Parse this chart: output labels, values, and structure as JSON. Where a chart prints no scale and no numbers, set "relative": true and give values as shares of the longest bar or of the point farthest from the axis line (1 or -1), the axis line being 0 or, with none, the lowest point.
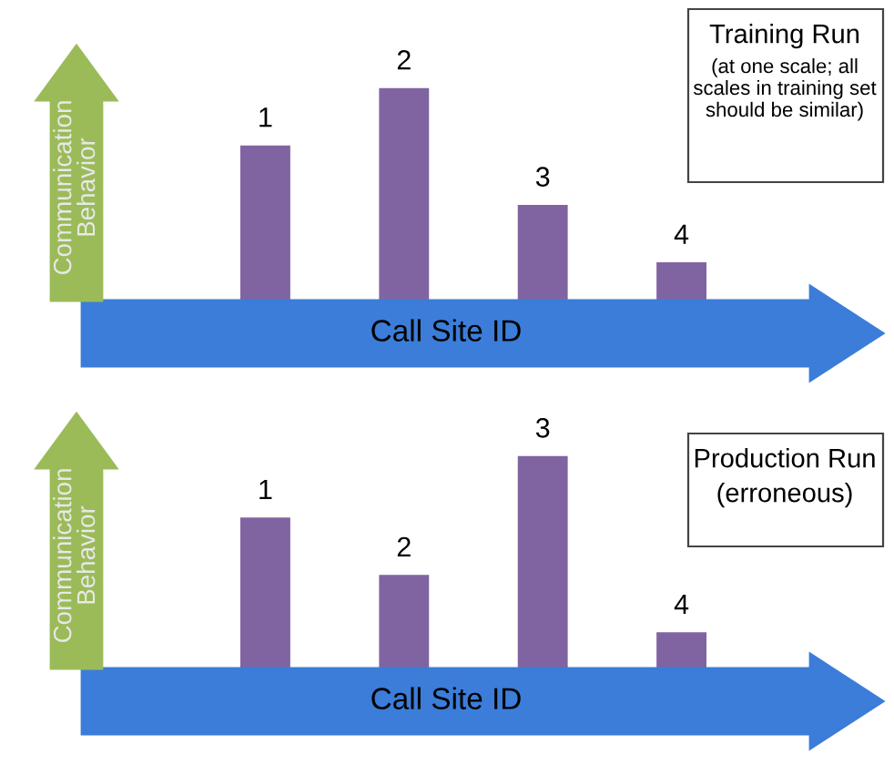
{
  "chart_data": [
    {
      "type": "bar",
      "categories": [
        "1",
        "2",
        "3",
        "4"
      ],
      "values": [
        0.73,
        1,
        0.45,
        0.18
      ],
      "relative": true,
      "color": "#8064a2",
      "xlabel": "Call Site ID",
      "ylabel": "Communication Behavior",
      "annotations": [
        "Training Run",
        "(at one scale; all\nscales in training set\nshould be similar)"
      ]
    },
    {
      "type": "bar",
      "categories": [
        "1",
        "2",
        "3",
        "4"
      ],
      "values": [
        0.71,
        0.44,
        1,
        0.17
      ],
      "relative": true,
      "color": "#8064a2",
      "xlabel": "Call Site ID",
      "ylabel": "Communication Behavior",
      "annotations": [
        "Production Run",
        "(erroneous)"
      ]
    }
  ]
}
